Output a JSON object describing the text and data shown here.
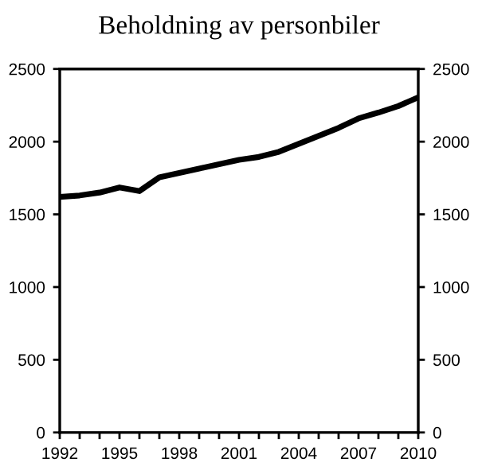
{
  "chart_data": {
    "type": "line",
    "title": "Beholdning av personbiler",
    "x": [
      1992,
      1993,
      1994,
      1995,
      1996,
      1997,
      1998,
      1999,
      2000,
      2001,
      2002,
      2003,
      2004,
      2005,
      2006,
      2007,
      2008,
      2009,
      2010
    ],
    "series": [
      {
        "color": "#000000",
        "values": [
          1620,
          1630,
          1650,
          1685,
          1660,
          1755,
          1785,
          1815,
          1845,
          1875,
          1895,
          1930,
          1985,
          2040,
          2095,
          2160,
          2200,
          2245,
          2305
        ]
      }
    ],
    "xlim": [
      1992,
      2010
    ],
    "xticks": [
      1992,
      {
        "value": 1993,
        "label": null
      },
      {
        "value": 1994,
        "label": null
      },
      1995,
      {
        "value": 1996,
        "label": null
      },
      {
        "value": 1997,
        "label": null
      },
      1998,
      {
        "value": 1999,
        "label": null
      },
      {
        "value": 2000,
        "label": null
      },
      2001,
      {
        "value": 2002,
        "label": null
      },
      {
        "value": 2003,
        "label": null
      },
      2004,
      {
        "value": 2005,
        "label": null
      },
      {
        "value": 2006,
        "label": null
      },
      2007,
      {
        "value": 2008,
        "label": null
      },
      {
        "value": 2009,
        "label": null
      },
      2010
    ],
    "ylim": [
      0,
      2500
    ],
    "yticks": [
      0,
      500,
      1000,
      1500,
      2000,
      2500
    ],
    "y2lim": [
      0,
      2500
    ],
    "y2ticks": [
      0,
      500,
      1000,
      1500,
      2000,
      2500
    ],
    "grid": false,
    "legend": false,
    "marker": "none",
    "line_style": "solid"
  }
}
